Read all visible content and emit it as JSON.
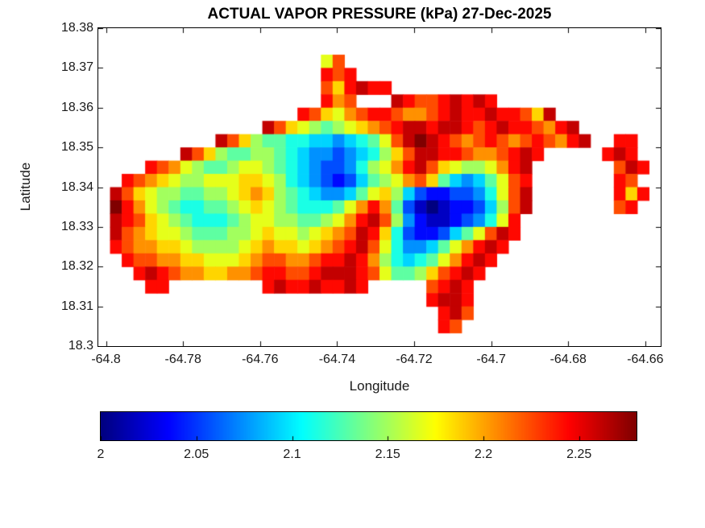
{
  "colors": {
    "background": "#ffffff",
    "axis": "#000000",
    "text": "#1a1a1a"
  },
  "chart_data": {
    "type": "heatmap",
    "title": "ACTUAL VAPOR PRESSURE (kPa) 27-Dec-2025",
    "xlabel": "Longitude",
    "ylabel": "Latitude",
    "xlim": [
      -64.802,
      -64.656
    ],
    "ylim": [
      18.3,
      18.38
    ],
    "x_ticks": [
      -64.8,
      -64.78,
      -64.76,
      -64.74,
      -64.72,
      -64.7,
      -64.68,
      -64.66
    ],
    "x_tick_labels": [
      "-64.8",
      "-64.78",
      "-64.76",
      "-64.74",
      "-64.72",
      "-64.7",
      "-64.68",
      "-64.66"
    ],
    "y_ticks": [
      18.3,
      18.31,
      18.32,
      18.33,
      18.34,
      18.35,
      18.36,
      18.37,
      18.38
    ],
    "y_tick_labels": [
      "18.3",
      "18.31",
      "18.32",
      "18.33",
      "18.34",
      "18.35",
      "18.36",
      "18.37",
      "18.38"
    ],
    "colormap": "jet",
    "value_range": [
      2.0,
      2.28
    ],
    "colorbar": {
      "orientation": "horizontal",
      "ticks": [
        2,
        2.05,
        2.1,
        2.15,
        2.2,
        2.25
      ],
      "tick_labels": [
        "2",
        "2.05",
        "2.1",
        "2.15",
        "2.2",
        "2.25"
      ]
    },
    "grid": {
      "ncols": 48,
      "nrows": 24,
      "encoding": "hex char = value level 0-15 mapped linearly onto value_range; '.' = no data",
      "rows": [
        "................................................",
        "................................................",
        "...................9c...........................",
        "...................dcd..........................",
        "...................cadedd.......................",
        "...................dbc...edccdeded..............",
        ".................dca9bcddcbbcdeddeddcae.........",
        "..............eca98789abcdeedeedcdeddcbde.......",
        "..........eca877665545679cefedcbcdcbcdcbde..dd..",
        ".......eca877887654434568aceeddcbbcded.....ded..",
        "....dcb987789987654334689bdeca9889bde.......ced.",
        "..dcba988999aa986543235789bca754579cd.......dc..",
        ".eca98877889aba876544579a8532233469ce.......dad.",
        ".fdb987667789a98766679bdb7310122358ce.......cd..",
        ".edca9876667899887789bdec8421123469d............",
        ".ecba998777889a9989abceda63223579ced............",
        ".dcbbaa988889abaa9abcdec9644579bded.............",
        "..dccbbaa999abccbbcddedb865679bded..............",
        "...dedcbbaabbcddccdeeedc9778acded...............",
        "....dd........deddedded.....cded................",
        "............................deed................",
        ".............................dec................",
        ".............................dc.................",
        "................................................"
      ]
    }
  }
}
